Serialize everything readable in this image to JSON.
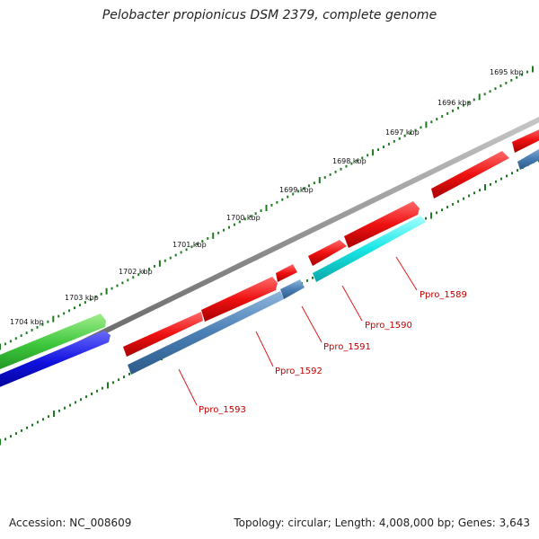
{
  "title": "Pelobacter propionicus DSM 2379, complete genome",
  "accession": "Accession: NC_008609",
  "summary": "Topology: circular; Length: 4,008,000 bp; Genes: 3,643",
  "scale_labels": [
    "1695 kbp",
    "1696 kbp",
    "1697 kbp",
    "1698 kbp",
    "1699 kbp",
    "1700 kbp",
    "1701 kbp",
    "1702 kbp",
    "1703 kbp",
    "1704 kbp"
  ],
  "gene_labels": [
    "Ppro_1589",
    "Ppro_1590",
    "Ppro_1591",
    "Ppro_1592",
    "Ppro_1593"
  ],
  "colors": {
    "backbone": "#8a8a8a",
    "forward_gene": "#ee1111",
    "reverse_gene": "#4a7fb5",
    "highlight_gene": "#19e6e6",
    "green_feature": "#3cc63c",
    "blue_feature": "#1010dd",
    "tick": "#1e7a1e",
    "label": "#c40000"
  }
}
